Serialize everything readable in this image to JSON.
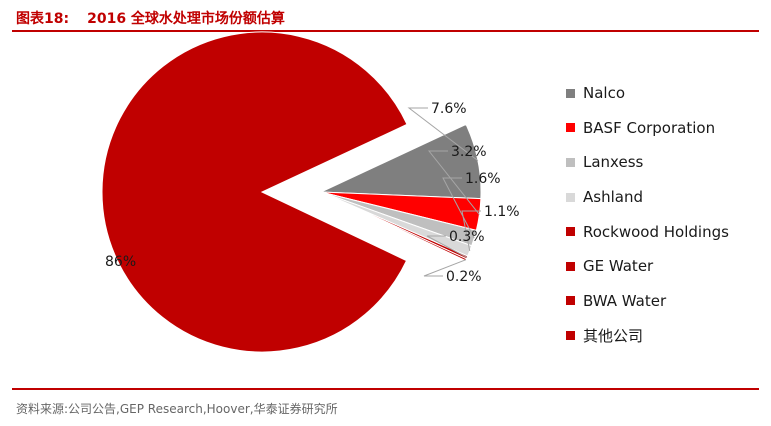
{
  "header": {
    "label": "图表18:",
    "title": "2016 全球水处理市场份额估算"
  },
  "chart_data": {
    "type": "pie",
    "title": "",
    "categories": [
      "Nalco",
      "BASF Corporation",
      "Lanxess",
      "Ashland",
      "Rockwood Holdings",
      "GE Water",
      "BWA Water",
      "其他公司"
    ],
    "values": [
      7.6,
      3.2,
      1.6,
      1.1,
      0.3,
      0.2,
      0,
      86
    ],
    "data_labels": [
      "7.6%",
      "3.2%",
      "1.6%",
      "1.1%",
      "0.3%",
      "0.2%",
      "",
      "86%"
    ],
    "colors": [
      "#7f7f7f",
      "#ff0000",
      "#bfbfbf",
      "#d9d9d9",
      "#c00000",
      "#c00000",
      "#c00000",
      "#c00000"
    ],
    "legend_position": "right",
    "exploded": "其他公司"
  },
  "footer": {
    "source": "资料来源:公司公告,GEP Research,Hoover,华泰证券研究所"
  }
}
